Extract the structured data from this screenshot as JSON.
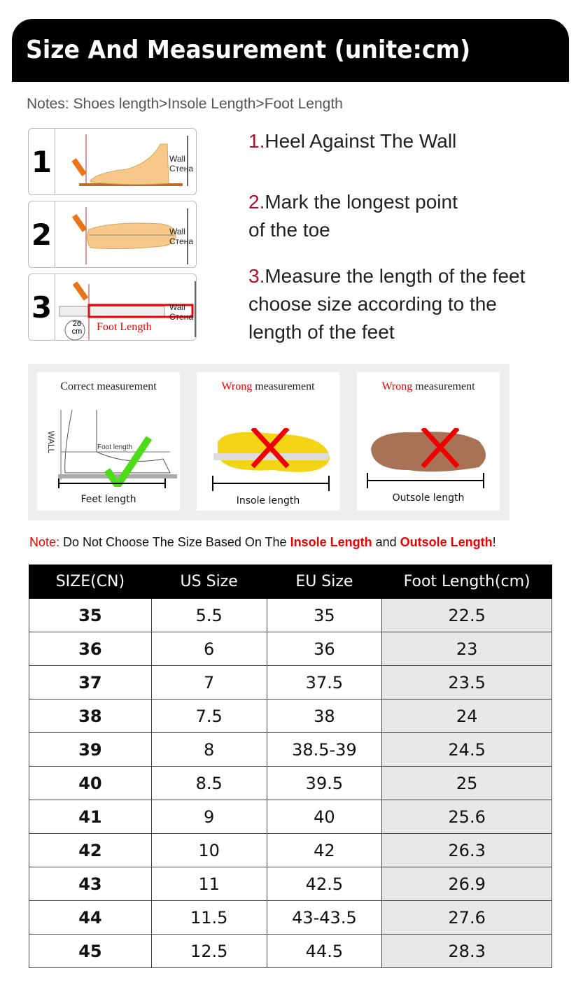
{
  "header": {
    "title": "Size And Measurement (unite:cm)"
  },
  "notes": "Notes: Shoes length>Insole Length>Foot Length",
  "steps": [
    {
      "num": "1",
      "wall": "Wall",
      "wall_ru": "Стена"
    },
    {
      "num": "2",
      "wall": "Wall",
      "wall_ru": "Стена"
    },
    {
      "num": "3",
      "wall": "Wall",
      "wall_ru": "Стена",
      "ruler_value": "26",
      "ruler_unit": "cm",
      "foot_length": "Foot Length"
    }
  ],
  "instructions": [
    {
      "num": "1.",
      "text": "Heel Against The Wall"
    },
    {
      "num": "2.",
      "line1": "Mark the longest point",
      "line2": "of the toe"
    },
    {
      "num": "3.",
      "line1": "Measure the length of the feet",
      "line2": "choose size according to the",
      "line3": "length of the feet"
    }
  ],
  "comparison": [
    {
      "title_prefix": "Correct",
      "title": " measurement",
      "label": "Feet length",
      "wall": "WALL",
      "foot_length": "Foot length",
      "mark": "check-icon"
    },
    {
      "title_prefix": "Wrong",
      "title": " measurement",
      "label": "Insole length",
      "mark": "cross-icon"
    },
    {
      "title_prefix": "Wrong",
      "title": " measurement",
      "label": "Outsole length",
      "mark": "cross-icon"
    }
  ],
  "note": {
    "prefix": "Note:",
    "text1": " Do Not Choose The Size Based On The ",
    "insole": "Insole Length",
    "and": " and ",
    "outsole": "Outsole Length",
    "end": "!"
  },
  "table": {
    "headers": [
      "SIZE(CN)",
      "US Size",
      "EU Size",
      "Foot Length(cm)"
    ],
    "rows": [
      [
        "35",
        "5.5",
        "35",
        "22.5"
      ],
      [
        "36",
        "6",
        "36",
        "23"
      ],
      [
        "37",
        "7",
        "37.5",
        "23.5"
      ],
      [
        "38",
        "7.5",
        "38",
        "24"
      ],
      [
        "39",
        "8",
        "38.5-39",
        "24.5"
      ],
      [
        "40",
        "8.5",
        "39.5",
        "25"
      ],
      [
        "41",
        "9",
        "40",
        "25.6"
      ],
      [
        "42",
        "10",
        "42",
        "26.3"
      ],
      [
        "43",
        "11",
        "42.5",
        "26.9"
      ],
      [
        "44",
        "11.5",
        "43-43.5",
        "27.6"
      ],
      [
        "45",
        "12.5",
        "44.5",
        "28.3"
      ]
    ]
  },
  "colors": {
    "accent_red": "#e00000",
    "step_number_red": "#b0102a",
    "header_bg": "#000000"
  }
}
